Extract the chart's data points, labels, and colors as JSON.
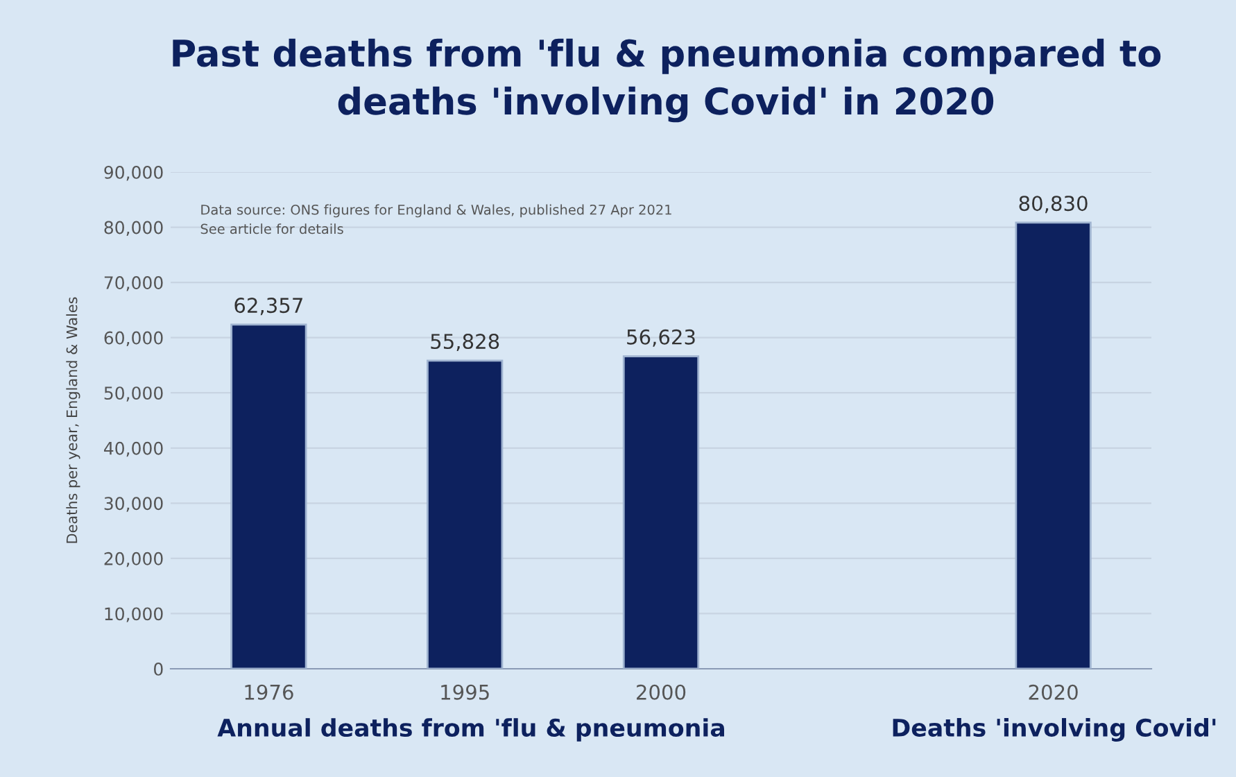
{
  "chart_data": {
    "type": "bar",
    "title": "Past deaths from 'flu & pneumonia compared to\ndeaths 'involving Covid' in 2020",
    "ylabel": "Deaths per year, England & Wales",
    "categories": [
      "1976",
      "1995",
      "2000",
      null,
      "2020"
    ],
    "values": [
      62357,
      55828,
      56623,
      null,
      80830
    ],
    "value_labels": [
      "62,357",
      "55,828",
      "56,623",
      null,
      "80,830"
    ],
    "color": "#0d215e",
    "ylim": [
      0,
      90000
    ],
    "yticks": [
      {
        "value": 0,
        "label": "0"
      },
      {
        "value": 10000,
        "label": "10,000"
      },
      {
        "value": 20000,
        "label": "20,000"
      },
      {
        "value": 30000,
        "label": "30,000"
      },
      {
        "value": 40000,
        "label": "40,000"
      },
      {
        "value": 50000,
        "label": "50,000"
      },
      {
        "value": 60000,
        "label": "60,000"
      },
      {
        "value": 70000,
        "label": "70,000"
      },
      {
        "value": 80000,
        "label": "80,000"
      },
      {
        "value": 90000,
        "label": "90,000"
      }
    ],
    "grid": "y",
    "annotations": [
      "Data source: ONS figures for England & Wales, published 27 Apr 2021\nSee article for details",
      "Annual deaths from 'flu & pneumonia",
      "Deaths 'involving Covid'"
    ]
  }
}
